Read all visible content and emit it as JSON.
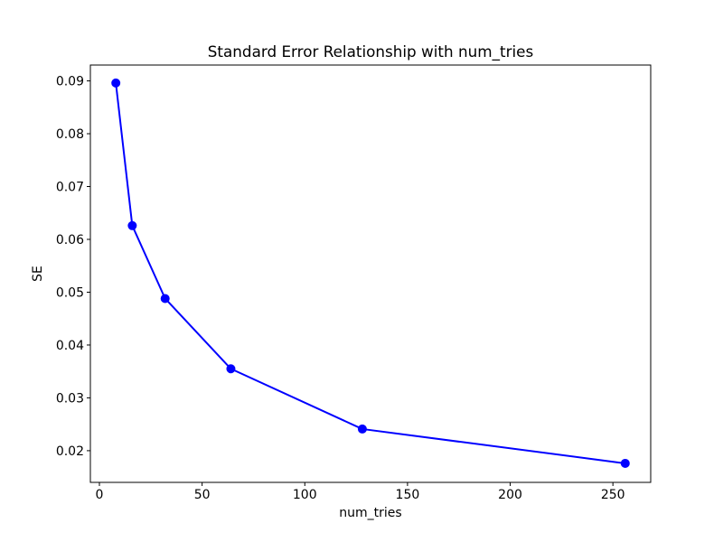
{
  "figure": {
    "background": "#ffffff",
    "text_color": "#000000",
    "spine_color": "#000000"
  },
  "chart_data": {
    "type": "line",
    "title": "Standard Error Relationship with num_tries",
    "xlabel": "num_tries",
    "ylabel": "SE",
    "x": [
      8,
      16,
      32,
      64,
      128,
      256
    ],
    "y": [
      0.0896,
      0.0626,
      0.0488,
      0.0355,
      0.0241,
      0.0176
    ],
    "line_color": "#0000ff",
    "marker": "circle",
    "marker_radius": 5,
    "line_width": 2,
    "xlim": [
      -4.4,
      268.4
    ],
    "ylim": [
      0.014,
      0.093
    ],
    "x_ticks": [
      0,
      50,
      100,
      150,
      200,
      250
    ],
    "x_tick_labels": [
      "0",
      "50",
      "100",
      "150",
      "200",
      "250"
    ],
    "y_ticks": [
      0.02,
      0.03,
      0.04,
      0.05,
      0.06,
      0.07,
      0.08,
      0.09
    ],
    "y_tick_labels": [
      "0.02",
      "0.03",
      "0.04",
      "0.05",
      "0.06",
      "0.07",
      "0.08",
      "0.09"
    ],
    "grid": false,
    "legend_position": "none"
  }
}
